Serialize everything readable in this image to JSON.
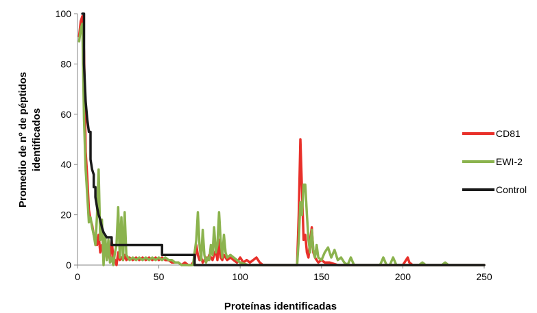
{
  "chart_data": {
    "type": "line",
    "title": "",
    "xlabel": "Proteínas identificadas",
    "ylabel_line1": "Promedio de nº de péptidos",
    "ylabel_line2": "identificados",
    "xlim": [
      0,
      250
    ],
    "ylim": [
      0,
      100
    ],
    "xticks": [
      0,
      50,
      100,
      150,
      200,
      250
    ],
    "yticks": [
      0,
      20,
      40,
      60,
      80,
      100
    ],
    "grid": false,
    "legend_position": "right",
    "series": [
      {
        "name": "CD81",
        "color": "#e8302a",
        "points": [
          [
            1,
            91
          ],
          [
            2,
            97
          ],
          [
            3,
            99
          ],
          [
            4,
            85
          ],
          [
            5,
            45
          ],
          [
            6,
            35
          ],
          [
            7,
            22
          ],
          [
            8,
            18
          ],
          [
            9,
            16
          ],
          [
            10,
            12
          ],
          [
            11,
            10
          ],
          [
            12,
            8
          ],
          [
            13,
            12
          ],
          [
            14,
            5
          ],
          [
            15,
            8
          ],
          [
            16,
            4
          ],
          [
            17,
            6
          ],
          [
            18,
            3
          ],
          [
            19,
            5
          ],
          [
            20,
            2
          ],
          [
            21,
            10
          ],
          [
            22,
            3
          ],
          [
            23,
            2
          ],
          [
            24,
            0
          ],
          [
            25,
            5
          ],
          [
            26,
            2
          ],
          [
            27,
            3
          ],
          [
            28,
            2
          ],
          [
            29,
            4
          ],
          [
            30,
            2
          ],
          [
            32,
            3
          ],
          [
            34,
            2
          ],
          [
            36,
            3
          ],
          [
            38,
            2
          ],
          [
            40,
            3
          ],
          [
            42,
            2
          ],
          [
            44,
            3
          ],
          [
            46,
            2
          ],
          [
            48,
            3
          ],
          [
            50,
            2
          ],
          [
            52,
            3
          ],
          [
            54,
            2
          ],
          [
            56,
            2
          ],
          [
            58,
            1
          ],
          [
            60,
            1
          ],
          [
            62,
            1
          ],
          [
            64,
            0
          ],
          [
            66,
            1
          ],
          [
            68,
            0
          ],
          [
            70,
            0
          ],
          [
            72,
            2
          ],
          [
            73,
            8
          ],
          [
            74,
            4
          ],
          [
            75,
            2
          ],
          [
            76,
            3
          ],
          [
            77,
            1
          ],
          [
            78,
            2
          ],
          [
            79,
            3
          ],
          [
            80,
            2
          ],
          [
            81,
            4
          ],
          [
            82,
            3
          ],
          [
            83,
            2
          ],
          [
            84,
            4
          ],
          [
            85,
            6
          ],
          [
            86,
            2
          ],
          [
            87,
            10
          ],
          [
            88,
            3
          ],
          [
            89,
            2
          ],
          [
            90,
            4
          ],
          [
            92,
            2
          ],
          [
            94,
            3
          ],
          [
            96,
            2
          ],
          [
            98,
            1
          ],
          [
            100,
            3
          ],
          [
            102,
            1
          ],
          [
            104,
            2
          ],
          [
            106,
            1
          ],
          [
            108,
            2
          ],
          [
            110,
            3
          ],
          [
            112,
            1
          ],
          [
            114,
            0
          ],
          [
            120,
            0
          ],
          [
            130,
            0
          ],
          [
            135,
            0
          ],
          [
            136,
            20
          ],
          [
            137,
            50
          ],
          [
            138,
            30
          ],
          [
            139,
            10
          ],
          [
            140,
            12
          ],
          [
            141,
            5
          ],
          [
            142,
            3
          ],
          [
            143,
            10
          ],
          [
            144,
            15
          ],
          [
            145,
            5
          ],
          [
            146,
            3
          ],
          [
            147,
            2
          ],
          [
            148,
            1
          ],
          [
            150,
            2
          ],
          [
            152,
            1
          ],
          [
            155,
            1
          ],
          [
            160,
            0
          ],
          [
            170,
            0
          ],
          [
            190,
            0
          ],
          [
            200,
            0
          ],
          [
            202,
            2
          ],
          [
            203,
            3
          ],
          [
            204,
            1
          ],
          [
            206,
            0
          ],
          [
            220,
            0
          ],
          [
            250,
            0
          ]
        ]
      },
      {
        "name": "EWI-2",
        "color": "#8bb34e",
        "points": [
          [
            1,
            89
          ],
          [
            2,
            94
          ],
          [
            3,
            96
          ],
          [
            4,
            58
          ],
          [
            5,
            38
          ],
          [
            6,
            28
          ],
          [
            7,
            17
          ],
          [
            8,
            19
          ],
          [
            9,
            15
          ],
          [
            10,
            12
          ],
          [
            11,
            8
          ],
          [
            12,
            20
          ],
          [
            13,
            38
          ],
          [
            14,
            10
          ],
          [
            15,
            18
          ],
          [
            16,
            0
          ],
          [
            17,
            12
          ],
          [
            18,
            2
          ],
          [
            19,
            10
          ],
          [
            20,
            1
          ],
          [
            21,
            3
          ],
          [
            22,
            0
          ],
          [
            23,
            5
          ],
          [
            24,
            8
          ],
          [
            25,
            23
          ],
          [
            26,
            3
          ],
          [
            27,
            19
          ],
          [
            28,
            2
          ],
          [
            29,
            21
          ],
          [
            30,
            4
          ],
          [
            32,
            2
          ],
          [
            34,
            3
          ],
          [
            36,
            2
          ],
          [
            38,
            3
          ],
          [
            40,
            2
          ],
          [
            42,
            3
          ],
          [
            44,
            2
          ],
          [
            46,
            3
          ],
          [
            48,
            2
          ],
          [
            50,
            3
          ],
          [
            52,
            2
          ],
          [
            54,
            3
          ],
          [
            56,
            2
          ],
          [
            58,
            2
          ],
          [
            60,
            1
          ],
          [
            62,
            1
          ],
          [
            64,
            0
          ],
          [
            66,
            0
          ],
          [
            68,
            0
          ],
          [
            70,
            0
          ],
          [
            71,
            0
          ],
          [
            72,
            5
          ],
          [
            73,
            10
          ],
          [
            74,
            21
          ],
          [
            75,
            8
          ],
          [
            76,
            2
          ],
          [
            77,
            14
          ],
          [
            78,
            4
          ],
          [
            79,
            1
          ],
          [
            80,
            3
          ],
          [
            81,
            2
          ],
          [
            82,
            8
          ],
          [
            83,
            4
          ],
          [
            84,
            15
          ],
          [
            85,
            5
          ],
          [
            86,
            8
          ],
          [
            87,
            21
          ],
          [
            88,
            10
          ],
          [
            89,
            3
          ],
          [
            90,
            12
          ],
          [
            91,
            5
          ],
          [
            92,
            3
          ],
          [
            94,
            4
          ],
          [
            96,
            3
          ],
          [
            98,
            2
          ],
          [
            100,
            1
          ],
          [
            105,
            0
          ],
          [
            110,
            0
          ],
          [
            120,
            0
          ],
          [
            135,
            0
          ],
          [
            136,
            10
          ],
          [
            137,
            25
          ],
          [
            138,
            20
          ],
          [
            139,
            32
          ],
          [
            140,
            32
          ],
          [
            141,
            20
          ],
          [
            142,
            10
          ],
          [
            143,
            5
          ],
          [
            144,
            14
          ],
          [
            145,
            6
          ],
          [
            146,
            3
          ],
          [
            147,
            8
          ],
          [
            148,
            3
          ],
          [
            150,
            2
          ],
          [
            152,
            5
          ],
          [
            154,
            7
          ],
          [
            156,
            3
          ],
          [
            158,
            6
          ],
          [
            160,
            2
          ],
          [
            162,
            3
          ],
          [
            164,
            1
          ],
          [
            166,
            0
          ],
          [
            168,
            3
          ],
          [
            170,
            0
          ],
          [
            180,
            0
          ],
          [
            186,
            0
          ],
          [
            188,
            3
          ],
          [
            190,
            0
          ],
          [
            192,
            0
          ],
          [
            194,
            3
          ],
          [
            196,
            0
          ],
          [
            200,
            0
          ],
          [
            210,
            0
          ],
          [
            212,
            1
          ],
          [
            214,
            0
          ],
          [
            224,
            0
          ],
          [
            226,
            1
          ],
          [
            228,
            0
          ],
          [
            250,
            0
          ]
        ]
      },
      {
        "name": "Control",
        "color": "#1a1a1a",
        "points": [
          [
            3,
            100
          ],
          [
            4,
            100
          ],
          [
            4,
            80
          ],
          [
            5,
            65
          ],
          [
            6,
            58
          ],
          [
            7,
            53
          ],
          [
            8,
            53
          ],
          [
            8,
            42
          ],
          [
            9,
            38
          ],
          [
            10,
            36
          ],
          [
            10,
            31
          ],
          [
            11,
            31
          ],
          [
            11,
            27
          ],
          [
            12,
            23
          ],
          [
            13,
            20
          ],
          [
            14,
            18
          ],
          [
            15,
            15
          ],
          [
            16,
            13
          ],
          [
            17,
            12
          ],
          [
            18,
            11
          ],
          [
            21,
            11
          ],
          [
            21,
            8
          ],
          [
            52,
            8
          ],
          [
            52,
            4
          ],
          [
            72,
            4
          ],
          [
            72,
            0
          ],
          [
            250,
            0
          ]
        ]
      }
    ]
  }
}
